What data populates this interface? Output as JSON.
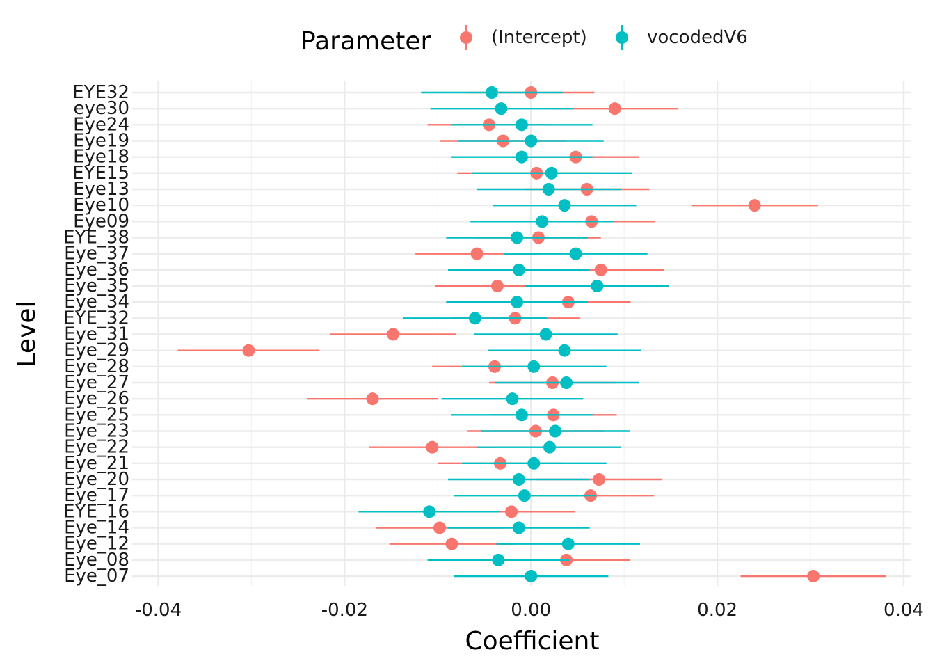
{
  "chart_data": {
    "type": "scatter",
    "title": "",
    "xlabel": "Coefficient",
    "ylabel": "Level",
    "xlim": [
      -0.04,
      0.04
    ],
    "x_ticks": [
      "-0.04",
      "-0.02",
      "0.00",
      "0.02",
      "0.04"
    ],
    "x_tick_values": [
      -0.04,
      -0.02,
      0.0,
      0.02,
      0.04
    ],
    "grid": true,
    "legend_title": "Parameter",
    "legend_position": "top",
    "categories": [
      "EYE32",
      "eye30",
      "Eye24",
      "Eye19",
      "Eye18",
      "EYE15",
      "Eye13",
      "Eye10",
      "Eye09",
      "EYE_38",
      "Eye_37",
      "Eye_36",
      "Eye_35",
      "Eye_34",
      "EYE_32",
      "Eye_31",
      "Eye_29",
      "Eye_28",
      "Eye_27",
      "Eye_26",
      "Eye_25",
      "Eye_23",
      "Eye_22",
      "Eye_21",
      "Eye_20",
      "Eye_17",
      "EYE_16",
      "Eye_14",
      "Eye_12",
      "Eye_08",
      "Eye_07"
    ],
    "series": [
      {
        "name": "(Intercept)",
        "color": "#F8766D",
        "values": [
          0.0,
          0.009,
          -0.0045,
          -0.003,
          0.0048,
          0.0006,
          0.006,
          0.024,
          0.0065,
          0.0008,
          -0.0058,
          0.0075,
          -0.0036,
          0.004,
          -0.0017,
          -0.0148,
          -0.0303,
          -0.0039,
          0.0023,
          -0.017,
          0.0024,
          0.0005,
          -0.0106,
          -0.0033,
          0.0073,
          0.0064,
          -0.0021,
          -0.0098,
          -0.0085,
          0.0038,
          0.0303
        ],
        "lower": [
          -0.0067,
          0.0022,
          -0.0111,
          -0.0098,
          -0.002,
          -0.0079,
          -0.0007,
          0.0172,
          -0.0003,
          -0.0059,
          -0.0124,
          0.0007,
          -0.0103,
          -0.0027,
          -0.0085,
          -0.0216,
          -0.0379,
          -0.0106,
          -0.0045,
          -0.024,
          -0.0043,
          -0.0068,
          -0.0174,
          -0.01,
          0.0005,
          -0.0004,
          -0.009,
          -0.0166,
          -0.0152,
          -0.003,
          0.0225
        ],
        "upper": [
          0.0068,
          0.0158,
          0.0021,
          0.0038,
          0.0116,
          0.0073,
          0.0127,
          0.0308,
          0.0133,
          0.0075,
          0.0008,
          0.0143,
          0.0031,
          0.0107,
          0.0052,
          -0.008,
          -0.0227,
          0.0029,
          0.0091,
          -0.01,
          0.0092,
          0.0078,
          -0.0038,
          0.0034,
          0.0141,
          0.0132,
          0.0047,
          -0.003,
          -0.0018,
          0.0106,
          0.0381
        ]
      },
      {
        "name": "vocodedV6",
        "color": "#00BFC4",
        "values": [
          -0.0042,
          -0.0032,
          -0.001,
          0.0,
          -0.001,
          0.0022,
          0.0019,
          0.0036,
          0.0012,
          -0.0015,
          0.0048,
          -0.0013,
          0.0071,
          -0.0015,
          -0.006,
          0.0016,
          0.0036,
          0.0003,
          0.0038,
          -0.002,
          -0.001,
          0.0026,
          0.002,
          0.0003,
          -0.0013,
          -0.0007,
          -0.0109,
          -0.0013,
          0.004,
          -0.0035,
          0.0
        ],
        "lower": [
          -0.0118,
          -0.0108,
          -0.0086,
          -0.0078,
          -0.0086,
          -0.0063,
          -0.0058,
          -0.0041,
          -0.0065,
          -0.0091,
          -0.0029,
          -0.0089,
          -0.0006,
          -0.0091,
          -0.0137,
          -0.0061,
          -0.0046,
          -0.0074,
          -0.0039,
          -0.0096,
          -0.0086,
          -0.0054,
          -0.0058,
          -0.0074,
          -0.0089,
          -0.0083,
          -0.0185,
          -0.0089,
          -0.0037,
          -0.0111,
          -0.0083
        ],
        "upper": [
          0.0034,
          0.0045,
          0.0066,
          0.0078,
          0.0066,
          0.0108,
          0.0097,
          0.0113,
          0.0089,
          0.0061,
          0.0125,
          0.0063,
          0.0148,
          0.0061,
          0.0017,
          0.0093,
          0.0118,
          0.0081,
          0.0116,
          0.0056,
          0.0066,
          0.0106,
          0.0097,
          0.0081,
          0.0063,
          0.007,
          -0.0033,
          0.0063,
          0.0117,
          0.0041,
          0.0083
        ]
      }
    ]
  }
}
